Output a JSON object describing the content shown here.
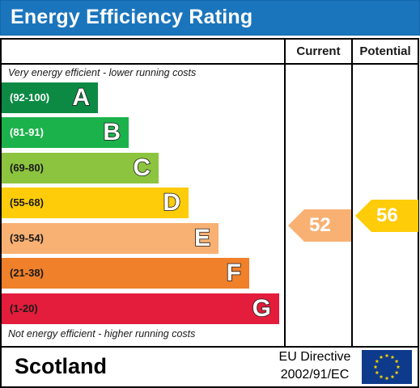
{
  "title": "Energy Efficiency Rating",
  "columns": {
    "current": "Current",
    "potential": "Potential"
  },
  "top_note": "Very energy efficient - lower running costs",
  "bottom_note": "Not energy efficient - higher running costs",
  "bands": [
    {
      "range": "(92-100)",
      "letter": "A",
      "color": "#0c8a44",
      "text_color": "#ffffff"
    },
    {
      "range": "(81-91)",
      "letter": "B",
      "color": "#1cb24b",
      "text_color": "#ffffff"
    },
    {
      "range": "(69-80)",
      "letter": "C",
      "color": "#8cc43f",
      "text_color": "#1a1a1a"
    },
    {
      "range": "(55-68)",
      "letter": "D",
      "color": "#fecc09",
      "text_color": "#1a1a1a"
    },
    {
      "range": "(39-54)",
      "letter": "E",
      "color": "#f8b173",
      "text_color": "#1a1a1a"
    },
    {
      "range": "(21-38)",
      "letter": "F",
      "color": "#f0802a",
      "text_color": "#1a1a1a"
    },
    {
      "range": "(1-20)",
      "letter": "G",
      "color": "#e31d3b",
      "text_color": "#1a1a1a"
    }
  ],
  "current_rating": {
    "value": "52",
    "color": "#f8b173"
  },
  "potential_rating": {
    "value": "56",
    "color": "#fecc09"
  },
  "footer": {
    "country": "Scotland",
    "directive_line1": "EU Directive",
    "directive_line2": "2002/91/EC"
  }
}
